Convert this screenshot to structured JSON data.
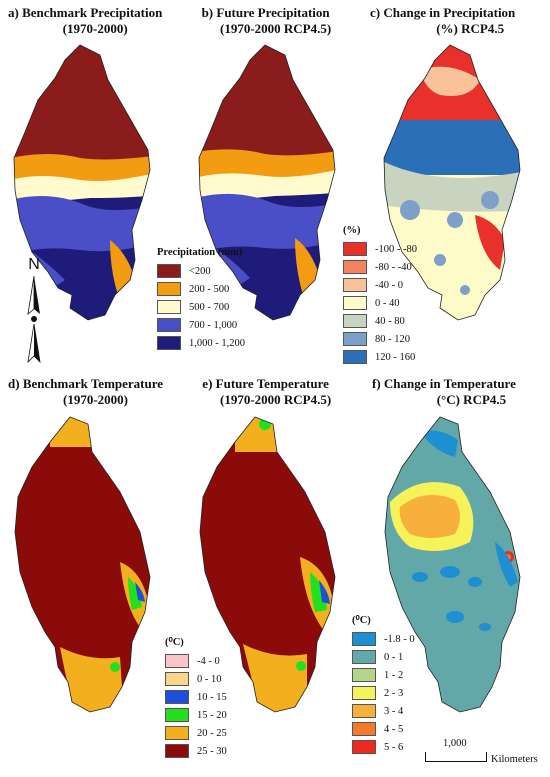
{
  "panels": {
    "a": {
      "label": "a)",
      "title_line1": "Benchmark Precipitation",
      "title_line2": "(1970-2000)"
    },
    "b": {
      "label": "b)",
      "title_line1": "Future Precipitation",
      "title_line2": "(1970-2000 RCP4.5)"
    },
    "c": {
      "label": "c)",
      "title_line1": "Change in Precipitation",
      "title_line2": "(%) RCP4.5"
    },
    "d": {
      "label": "d)",
      "title_line1": "Benchmark Temperature",
      "title_line2": "(1970-2000)"
    },
    "e": {
      "label": "e)",
      "title_line1": "Future Temperature",
      "title_line2": "(1970-2000 RCP4.5)"
    },
    "f": {
      "label": "f)",
      "title_line1": "Change in Temperature",
      "title_line2": "(°C) RCP4.5"
    }
  },
  "legends": {
    "precipitation": {
      "title": "Precipitation (mm)",
      "items": [
        {
          "label": "<200",
          "color": "#8b1c1c"
        },
        {
          "label": "200 - 500",
          "color": "#f39c12"
        },
        {
          "label": "500 - 700",
          "color": "#fffbcf"
        },
        {
          "label": "700 - 1,000",
          "color": "#4a4fc7"
        },
        {
          "label": "1,000 - 1,200",
          "color": "#1f1b7a"
        }
      ]
    },
    "precip_change": {
      "unit": "(%)",
      "items": [
        {
          "label": "-100 - -80",
          "color": "#e8312a"
        },
        {
          "label": "-80 - -40",
          "color": "#f5825e"
        },
        {
          "label": "-40 - 0",
          "color": "#f9c29a"
        },
        {
          "label": "0 - 40",
          "color": "#fdfbc8"
        },
        {
          "label": "40 - 80",
          "color": "#c8d3c0"
        },
        {
          "label": "80 - 120",
          "color": "#7ea0c8"
        },
        {
          "label": "120 - 160",
          "color": "#2b6fb8"
        }
      ]
    },
    "temperature": {
      "unit": "(⁰C)",
      "items": [
        {
          "label": "-4 - 0",
          "color": "#fbc4c8"
        },
        {
          "label": "0 - 10",
          "color": "#f9d58c"
        },
        {
          "label": "10 - 15",
          "color": "#1e4fd8"
        },
        {
          "label": "15 - 20",
          "color": "#22e01e"
        },
        {
          "label": "20 - 25",
          "color": "#f2b01e"
        },
        {
          "label": "25 - 30",
          "color": "#8b0a0a"
        }
      ]
    },
    "temp_change": {
      "unit": "(⁰C)",
      "items": [
        {
          "label": "-1.8 - 0",
          "color": "#1e8fd0"
        },
        {
          "label": "0 - 1",
          "color": "#63a8a8"
        },
        {
          "label": "1 - 2",
          "color": "#b4d48c"
        },
        {
          "label": "2 - 3",
          "color": "#f6f25a"
        },
        {
          "label": "3 - 4",
          "color": "#f7b03c"
        },
        {
          "label": "4 - 5",
          "color": "#f27a2a"
        },
        {
          "label": "5 - 6",
          "color": "#f0281e"
        }
      ]
    }
  },
  "north_arrow": {
    "label": "N"
  },
  "scale_bar": {
    "value": "1,000",
    "unit": "Kilometers"
  }
}
